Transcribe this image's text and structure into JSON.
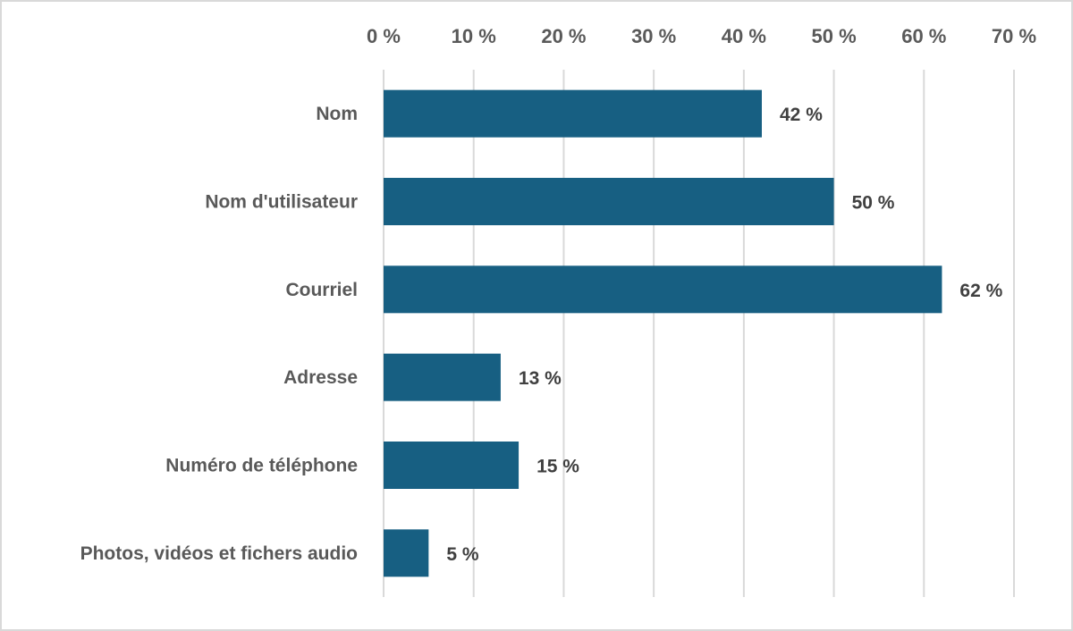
{
  "chart_data": {
    "type": "bar",
    "orientation": "horizontal",
    "categories": [
      "Nom",
      "Nom d'utilisateur",
      "Courriel",
      "Adresse",
      "Numéro de téléphone",
      "Photos, vidéos et fichers audio"
    ],
    "values": [
      42,
      50,
      62,
      13,
      15,
      5
    ],
    "data_labels": [
      "42 %",
      "50 %",
      "62 %",
      "13 %",
      "15 %",
      "5 %"
    ],
    "xlim": [
      0,
      70
    ],
    "x_ticks": [
      0,
      10,
      20,
      30,
      40,
      50,
      60,
      70
    ],
    "x_tick_labels": [
      "0 %",
      "10 %",
      "20 %",
      "30 %",
      "40 %",
      "50 %",
      "60 %",
      "70 %"
    ],
    "x_axis_position": "top",
    "grid": true,
    "title": "",
    "xlabel": "",
    "ylabel": "",
    "colors": {
      "bar": "#175f82",
      "grid": "#d9d9d9",
      "text": "#595959",
      "data_label": "#404040"
    }
  }
}
